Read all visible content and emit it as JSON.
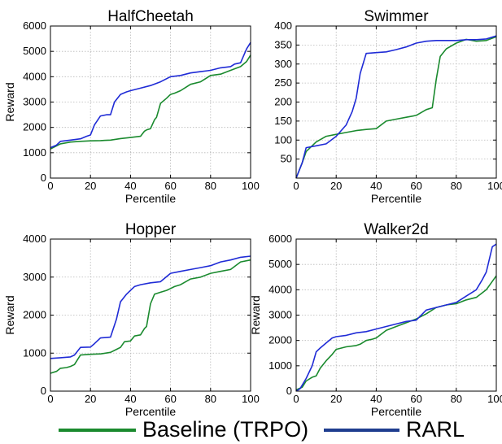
{
  "chart_data": [
    {
      "type": "line",
      "title": "HalfCheetah",
      "xlabel": "Percentile",
      "ylabel": "Reward",
      "xlim": [
        0,
        100
      ],
      "ylim": [
        0,
        6000
      ],
      "xticks": [
        0,
        20,
        40,
        60,
        80,
        100
      ],
      "yticks": [
        0,
        1000,
        2000,
        3000,
        4000,
        5000,
        6000
      ],
      "grid": true,
      "series": [
        {
          "name": "Baseline (TRPO)",
          "color": "#1a8a2e",
          "x": [
            0,
            5,
            10,
            15,
            20,
            25,
            30,
            35,
            40,
            45,
            47,
            48,
            50,
            52,
            53,
            55,
            58,
            60,
            62,
            65,
            68,
            70,
            75,
            78,
            80,
            85,
            90,
            95,
            98,
            100
          ],
          "y": [
            1150,
            1350,
            1420,
            1450,
            1470,
            1480,
            1500,
            1560,
            1600,
            1650,
            1850,
            1900,
            1950,
            2300,
            2400,
            2950,
            3150,
            3300,
            3350,
            3450,
            3600,
            3700,
            3800,
            3950,
            4050,
            4100,
            4250,
            4400,
            4600,
            4850
          ]
        },
        {
          "name": "RARL",
          "color": "#1f2bd6",
          "x": [
            0,
            3,
            5,
            10,
            15,
            18,
            20,
            22,
            25,
            28,
            30,
            32,
            35,
            38,
            40,
            45,
            50,
            55,
            60,
            65,
            70,
            75,
            80,
            85,
            90,
            92,
            95,
            98,
            100
          ],
          "y": [
            1200,
            1300,
            1450,
            1500,
            1550,
            1650,
            1700,
            2100,
            2450,
            2500,
            2500,
            3000,
            3300,
            3400,
            3450,
            3550,
            3650,
            3800,
            4000,
            4050,
            4150,
            4200,
            4250,
            4350,
            4400,
            4500,
            4550,
            5100,
            5350
          ]
        }
      ]
    },
    {
      "type": "line",
      "title": "Swimmer",
      "xlabel": "Percentile",
      "ylabel": "",
      "xlim": [
        0,
        100
      ],
      "ylim": [
        0,
        400
      ],
      "xticks": [
        0,
        20,
        40,
        60,
        80,
        100
      ],
      "ytick_values": [
        0,
        50,
        100,
        150,
        200,
        250,
        300,
        350,
        400
      ],
      "ytick_labels": [
        "",
        "50",
        "100",
        "150",
        "200",
        "250",
        "300",
        "350",
        "400"
      ],
      "grid": true,
      "series": [
        {
          "name": "Baseline (TRPO)",
          "color": "#1a8a2e",
          "x": [
            0,
            3,
            5,
            10,
            15,
            20,
            25,
            30,
            35,
            40,
            45,
            50,
            55,
            60,
            65,
            68,
            70,
            72,
            75,
            80,
            85,
            90,
            95,
            100
          ],
          "y": [
            0,
            40,
            70,
            95,
            110,
            115,
            120,
            125,
            128,
            130,
            150,
            155,
            160,
            165,
            180,
            185,
            260,
            320,
            340,
            355,
            365,
            360,
            362,
            372
          ]
        },
        {
          "name": "RARL",
          "color": "#1f2bd6",
          "x": [
            0,
            3,
            5,
            10,
            15,
            20,
            25,
            28,
            30,
            32,
            35,
            40,
            45,
            50,
            55,
            60,
            65,
            70,
            75,
            80,
            85,
            90,
            95,
            100
          ],
          "y": [
            0,
            40,
            80,
            85,
            90,
            110,
            140,
            175,
            210,
            275,
            328,
            330,
            332,
            338,
            345,
            355,
            360,
            362,
            362,
            362,
            364,
            364,
            366,
            374
          ]
        }
      ]
    },
    {
      "type": "line",
      "title": "Hopper",
      "xlabel": "Percentile",
      "ylabel": "Reward",
      "xlim": [
        0,
        100
      ],
      "ylim": [
        0,
        4000
      ],
      "xticks": [
        0,
        20,
        40,
        60,
        80,
        100
      ],
      "yticks": [
        0,
        1000,
        2000,
        3000,
        4000
      ],
      "grid": true,
      "series": [
        {
          "name": "Baseline (TRPO)",
          "color": "#1a8a2e",
          "x": [
            0,
            3,
            5,
            8,
            10,
            12,
            15,
            20,
            25,
            30,
            33,
            35,
            37,
            40,
            42,
            45,
            47,
            48,
            50,
            52,
            55,
            58,
            60,
            62,
            65,
            70,
            75,
            80,
            85,
            90,
            95,
            100
          ],
          "y": [
            470,
            520,
            600,
            620,
            650,
            700,
            950,
            970,
            980,
            1020,
            1100,
            1150,
            1300,
            1320,
            1450,
            1480,
            1650,
            1700,
            2300,
            2550,
            2600,
            2650,
            2700,
            2750,
            2800,
            2950,
            3000,
            3100,
            3150,
            3200,
            3400,
            3450
          ]
        },
        {
          "name": "RARL",
          "color": "#1f2bd6",
          "x": [
            0,
            5,
            10,
            12,
            15,
            20,
            22,
            25,
            30,
            33,
            35,
            38,
            40,
            42,
            45,
            50,
            55,
            60,
            65,
            70,
            75,
            80,
            85,
            90,
            95,
            100
          ],
          "y": [
            860,
            880,
            900,
            950,
            1150,
            1160,
            1250,
            1400,
            1420,
            1900,
            2350,
            2550,
            2650,
            2750,
            2800,
            2850,
            2880,
            3100,
            3150,
            3200,
            3250,
            3300,
            3400,
            3450,
            3520,
            3550
          ]
        }
      ]
    },
    {
      "type": "line",
      "title": "Walker2d",
      "xlabel": "Percentile",
      "ylabel": "Reward",
      "xlim": [
        0,
        100
      ],
      "ylim": [
        0,
        6000
      ],
      "xticks": [
        0,
        20,
        40,
        60,
        80,
        100
      ],
      "yticks": [
        0,
        1000,
        2000,
        3000,
        4000,
        5000,
        6000
      ],
      "grid": true,
      "series": [
        {
          "name": "Baseline (TRPO)",
          "color": "#1a8a2e",
          "x": [
            0,
            3,
            5,
            8,
            10,
            12,
            15,
            18,
            20,
            25,
            30,
            32,
            35,
            38,
            40,
            45,
            50,
            55,
            60,
            65,
            70,
            75,
            80,
            85,
            90,
            95,
            100
          ],
          "y": [
            50,
            150,
            400,
            550,
            600,
            900,
            1200,
            1450,
            1650,
            1750,
            1800,
            1850,
            2000,
            2050,
            2100,
            2400,
            2550,
            2700,
            2850,
            3050,
            3300,
            3400,
            3450,
            3600,
            3700,
            4000,
            4550
          ]
        },
        {
          "name": "RARL",
          "color": "#1f2bd6",
          "x": [
            0,
            2,
            5,
            8,
            10,
            12,
            15,
            18,
            20,
            25,
            30,
            35,
            40,
            45,
            50,
            55,
            60,
            65,
            70,
            75,
            80,
            85,
            88,
            90,
            93,
            95,
            98,
            100
          ],
          "y": [
            0,
            100,
            500,
            1000,
            1550,
            1700,
            1900,
            2100,
            2150,
            2200,
            2300,
            2350,
            2450,
            2550,
            2650,
            2750,
            2800,
            3200,
            3300,
            3400,
            3500,
            3750,
            3900,
            4000,
            4400,
            4700,
            5700,
            5800
          ]
        }
      ]
    }
  ],
  "legend": {
    "baseline": {
      "label": "Baseline (TRPO)",
      "color": "#1a8a2e"
    },
    "rarl": {
      "label": "RARL",
      "color": "#1f3d8f"
    }
  }
}
